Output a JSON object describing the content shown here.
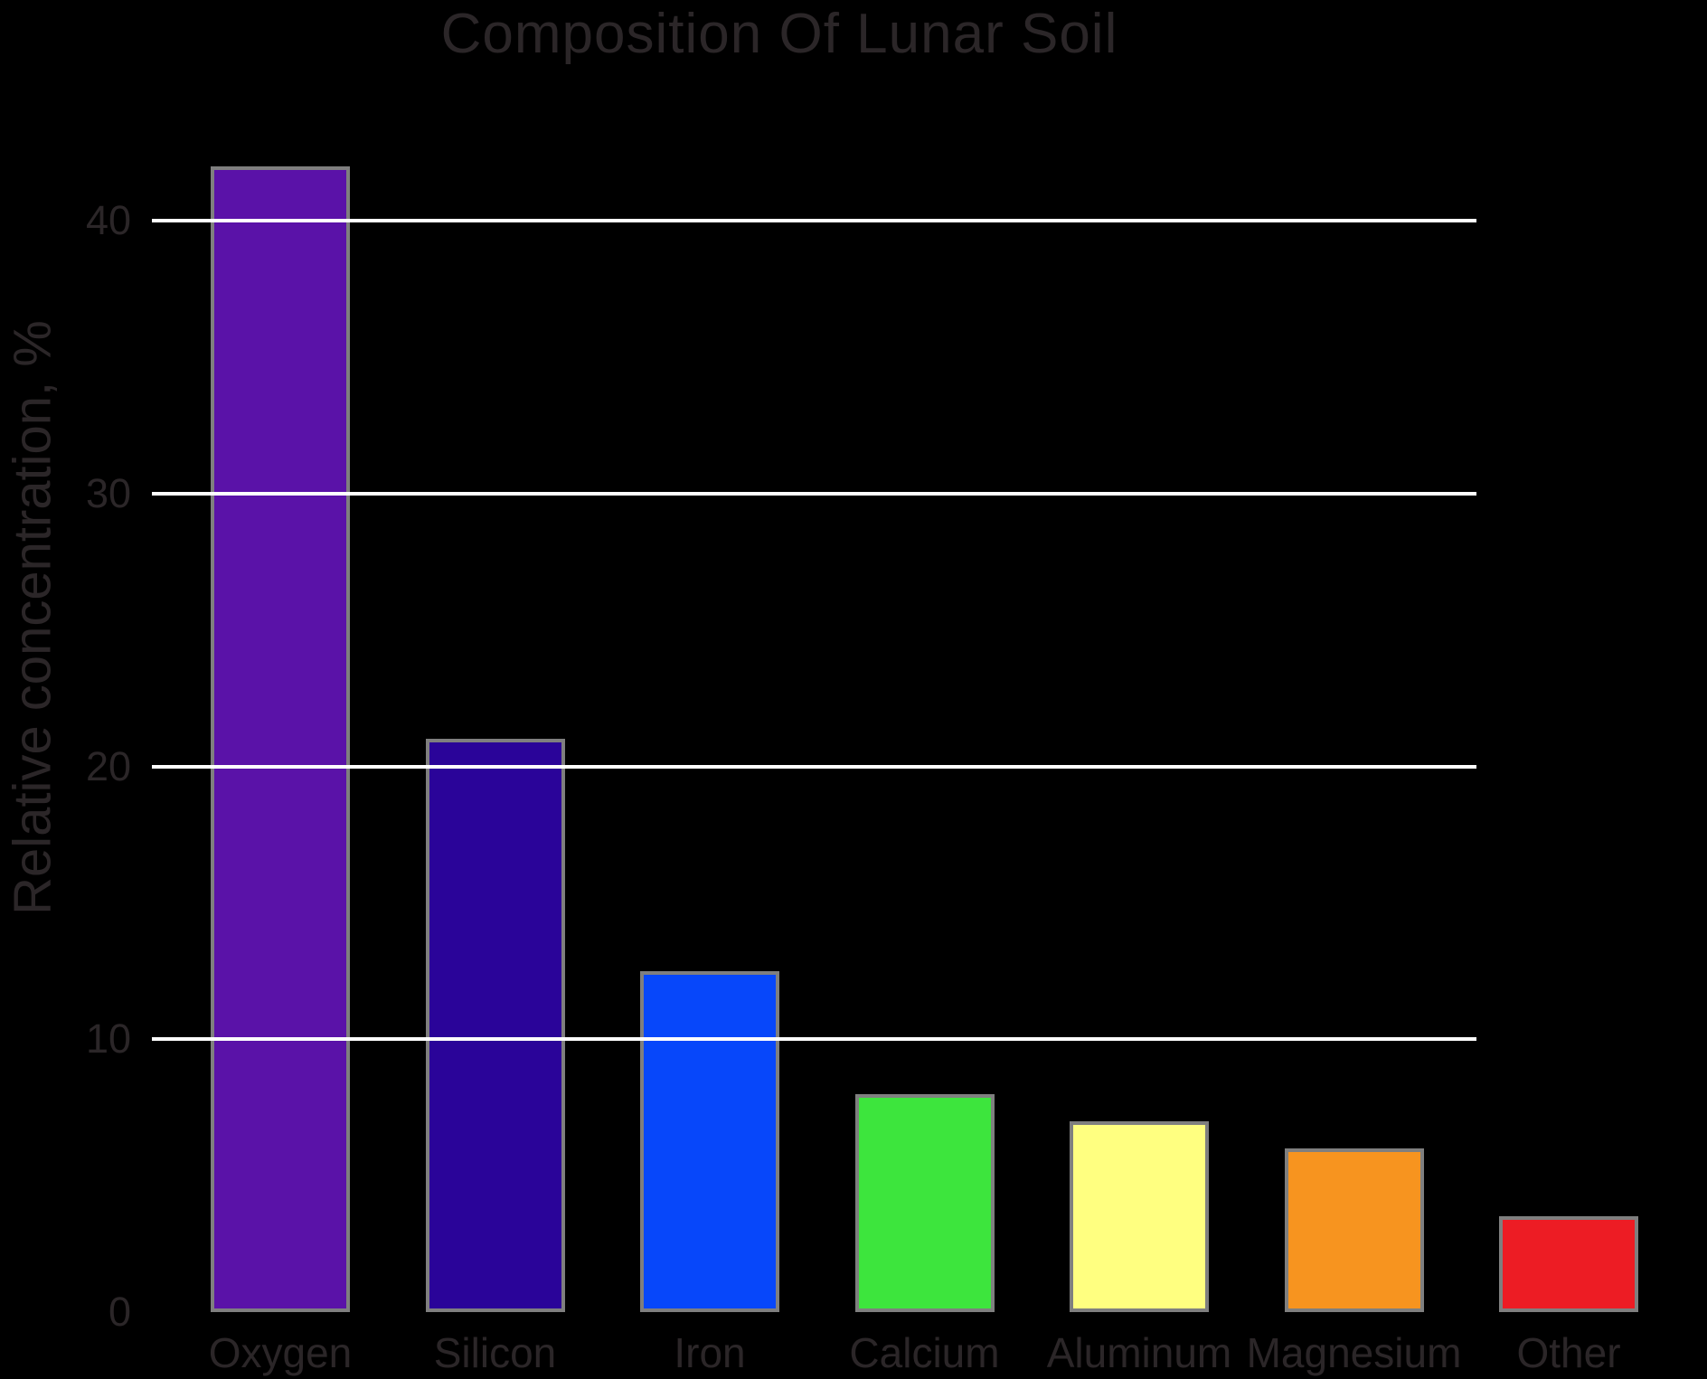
{
  "title": "Composition Of Lunar Soil",
  "colors": {
    "background": "#000000",
    "text": "#2b2628",
    "gridline": "#ffffff",
    "bar_border": "#7f7f7f"
  },
  "chart_data": {
    "type": "bar",
    "title": "Composition Of Lunar Soil",
    "xlabel": "",
    "ylabel": "Relative concentration, %",
    "categories": [
      "Oxygen",
      "Silicon",
      "Iron",
      "Calcium",
      "Aluminum",
      "Magnesium",
      "Other"
    ],
    "values": [
      42,
      21,
      12.5,
      8,
      7,
      6,
      3.5
    ],
    "bar_colors": [
      "#5a12a8",
      "#2a0499",
      "#0747fa",
      "#3de53d",
      "#ffff80",
      "#f7941f",
      "#ed1c24"
    ],
    "yticks": [
      0,
      10,
      20,
      30,
      40
    ],
    "ylim": [
      0,
      43.5
    ],
    "grid": "horizontal-white-lines-over-bars",
    "legend": "none"
  }
}
